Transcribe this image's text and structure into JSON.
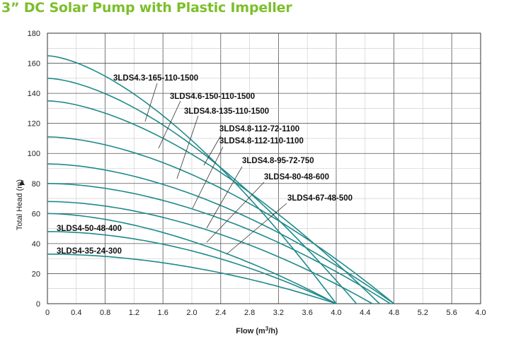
{
  "page": {
    "title": "3” DC Solar Pump with Plastic Impeller"
  },
  "chart_data": {
    "type": "line",
    "title": "3” DC Solar Pump with Plastic Impeller",
    "xlabel": "Flow (m",
    "xlabel_sup": "3",
    "xlabel_tail": "/h)",
    "ylabel": "Total Head (m)",
    "xlim": [
      0,
      4.0
    ],
    "ylim": [
      0,
      180
    ],
    "x_ticks": [
      "0",
      "0.4",
      "0.8",
      "1.2",
      "1.6",
      "2.0",
      "2.4",
      "2.8",
      "3.2",
      "3.6",
      "4.0",
      "4.4",
      "4.8",
      "5.2",
      "5.6",
      "4.0"
    ],
    "y_ticks": [
      0,
      20,
      40,
      60,
      80,
      100,
      120,
      140,
      160,
      180
    ],
    "grid": true,
    "line_color": "#1f8a8a",
    "series": [
      {
        "name": "3LDS4.3-165-110-1500",
        "shutoff_head": 165,
        "max_flow": 4.0
      },
      {
        "name": "3LDS4.6-150-110-1500",
        "shutoff_head": 150,
        "max_flow": 4.28
      },
      {
        "name": "3LDS4.8-135-110-1500",
        "shutoff_head": 135,
        "max_flow": 4.6
      },
      {
        "name": "3LDS4.8-112-72-1100",
        "shutoff_head": 111,
        "max_flow": 4.8
      },
      {
        "name": "3LDS4.8-112-110-1100",
        "shutoff_head": 93,
        "max_flow": 4.8
      },
      {
        "name": "3LDS4.8-95-72-750",
        "shutoff_head": 80,
        "max_flow": 4.75
      },
      {
        "name": "3LDS4-80-48-600",
        "shutoff_head": 68,
        "max_flow": 4.5
      },
      {
        "name": "3LDS4-67-48-500",
        "shutoff_head": 60,
        "max_flow": 4.0
      },
      {
        "name": "3LDS4-50-48-400",
        "shutoff_head": 48,
        "max_flow": 4.0
      },
      {
        "name": "3LDS4-35-24-300",
        "shutoff_head": 33,
        "max_flow": 4.0
      }
    ]
  }
}
